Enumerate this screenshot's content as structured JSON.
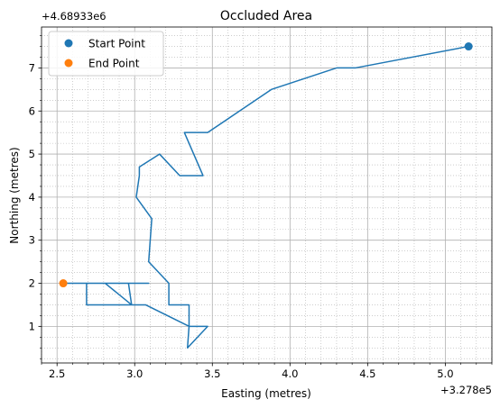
{
  "chart_data": {
    "type": "line",
    "title": "Occluded Area",
    "xlabel": "Easting (metres)",
    "ylabel": "Northing (metres)",
    "x_offset_label": "+3.278e5",
    "y_offset_label": "+4.68933e6",
    "xlim": [
      2.4,
      5.3
    ],
    "ylim": [
      0.15,
      7.95
    ],
    "x_ticks": [
      2.5,
      3.0,
      3.5,
      4.0,
      4.5,
      5.0
    ],
    "x_tick_labels": [
      "2.5",
      "3.0",
      "3.5",
      "4.0",
      "4.5",
      "5.0"
    ],
    "y_ticks": [
      1,
      2,
      3,
      4,
      5,
      6,
      7
    ],
    "y_tick_labels": [
      "1",
      "2",
      "3",
      "4",
      "5",
      "6",
      "7"
    ],
    "grid": {
      "major": true,
      "minor": true
    },
    "legend_position": "top-left",
    "series": [
      {
        "kind": "line",
        "color": "#1f77b4",
        "x": [
          5.15,
          4.42,
          4.3,
          3.88,
          3.47,
          3.32,
          3.44,
          3.29,
          3.16,
          3.03,
          3.03,
          3.01,
          3.11,
          3.09,
          3.22,
          3.22,
          3.35,
          3.35,
          3.35,
          3.47,
          3.34,
          3.35,
          3.07,
          2.69,
          2.69,
          2.96,
          2.98,
          2.81,
          3.09,
          2.54
        ],
        "y": [
          7.5,
          7.0,
          7.0,
          6.5,
          5.5,
          5.5,
          4.5,
          4.5,
          5.0,
          4.7,
          4.5,
          4.0,
          3.5,
          2.5,
          2.0,
          1.5,
          1.5,
          1.0,
          1.0,
          1.0,
          0.5,
          1.0,
          1.5,
          1.5,
          2.0,
          2.0,
          1.5,
          2.0,
          2.0,
          2.0
        ]
      }
    ],
    "points": [
      {
        "name": "Start Point",
        "x": 5.15,
        "y": 7.5,
        "color": "#1f77b4"
      },
      {
        "name": "End Point",
        "x": 2.54,
        "y": 2.0,
        "color": "#ff7f0e"
      }
    ]
  }
}
